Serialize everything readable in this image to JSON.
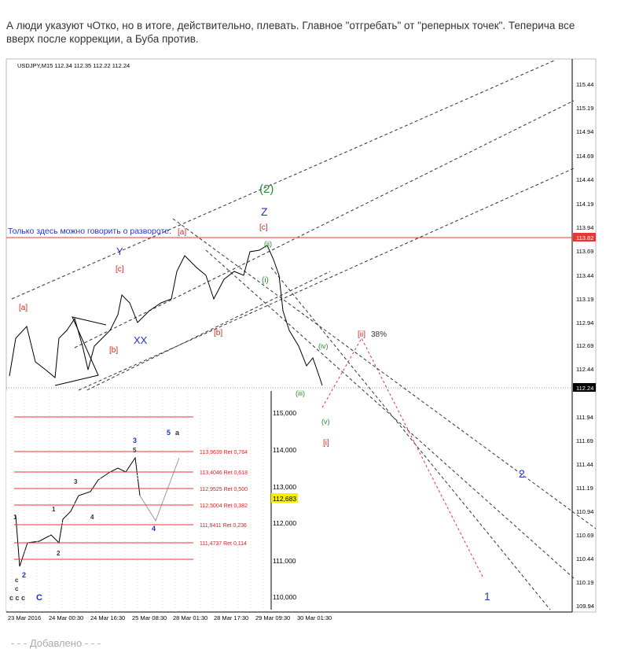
{
  "post": {
    "text": "А люди указуют чОтко, но в итоге, действительно, плевать. Главное \"отгребать\" от \"реперных точек\". Теперича все вверх после коррекции, а Буба против.",
    "footer": "- - - Добавлено - - -"
  },
  "chart": {
    "header": "USDJPY,M15  112.34 112.35 112.22 112.24",
    "note": "Только здесь можно говорить о развороте.",
    "price_labels": [
      "115.44",
      "115.19",
      "114.94",
      "114.69",
      "114.44",
      "114.19",
      "113.94",
      "113.69",
      "113.44",
      "113.19",
      "112.94",
      "112.69",
      "112.44",
      "111.94",
      "111.69",
      "111.44",
      "111.19",
      "110.94",
      "110.69",
      "110.44",
      "110.19",
      "109.94"
    ],
    "level_tags": [
      "113.82",
      "112.24"
    ],
    "time_labels": [
      "23 Mar 2016",
      "24 Mar 00:30",
      "24 Mar 16:30",
      "25 Mar 08:30",
      "28 Mar 01:30",
      "28 Mar 17:30",
      "29 Mar 09:30",
      "30 Mar 01:30"
    ],
    "wave_labels": [
      "(2)",
      "Z",
      "[c]",
      "[a]",
      "Y",
      "[c]",
      "[a]",
      "[b]",
      "XX",
      "[b]",
      "(ii)",
      "(i)",
      "(iv)",
      "(iii)",
      "(v)",
      "[i]",
      "[ii]",
      "38%",
      "2",
      "1"
    ]
  },
  "inset": {
    "price_labels": [
      "115,000",
      "114,000",
      "113,000",
      "112,000",
      "111,000",
      "110,000"
    ],
    "current": "112,683",
    "fib_levels": [
      "113,9639 Ret 0,764",
      "113,4046 Ret 0,618",
      "112,9525 Ret 0,500",
      "112,5004 Ret 0,382",
      "111,9411 Ret 0,236",
      "111,4737 Ret 0,114"
    ],
    "wave_labels": [
      "3",
      "5",
      "5",
      "a",
      "3",
      "1",
      "4",
      "4",
      "1",
      "2",
      "2",
      "c",
      "c",
      "c c c",
      "C"
    ]
  }
}
